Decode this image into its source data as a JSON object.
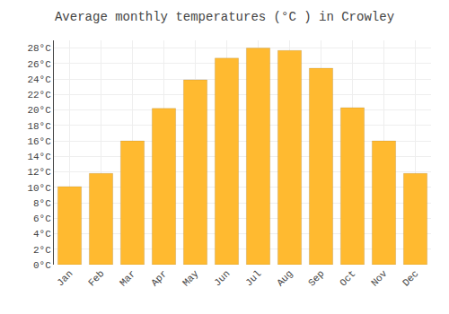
{
  "chart_data": {
    "type": "bar",
    "title": "Average monthly temperatures (°C ) in Crowley",
    "categories": [
      "Jan",
      "Feb",
      "Mar",
      "Apr",
      "May",
      "Jun",
      "Jul",
      "Aug",
      "Sep",
      "Oct",
      "Nov",
      "Dec"
    ],
    "values": [
      10.1,
      11.8,
      16.0,
      20.2,
      23.9,
      26.7,
      28.0,
      27.7,
      25.4,
      20.3,
      16.0,
      11.8
    ],
    "color": "#FFBA30",
    "ylim": [
      0,
      29
    ],
    "yticks": [
      {
        "value": 0,
        "label": "0°C"
      },
      {
        "value": 2,
        "label": "2°C"
      },
      {
        "value": 4,
        "label": "4°C"
      },
      {
        "value": 6,
        "label": "6°C"
      },
      {
        "value": 8,
        "label": "8°C"
      },
      {
        "value": 10,
        "label": "10°C"
      },
      {
        "value": 12,
        "label": "12°C"
      },
      {
        "value": 14,
        "label": "14°C"
      },
      {
        "value": 16,
        "label": "16°C"
      },
      {
        "value": 18,
        "label": "18°C"
      },
      {
        "value": 20,
        "label": "20°C"
      },
      {
        "value": 22,
        "label": "22°C"
      },
      {
        "value": 24,
        "label": "24°C"
      },
      {
        "value": 26,
        "label": "26°C"
      },
      {
        "value": 28,
        "label": "28°C"
      }
    ],
    "grid": true
  }
}
